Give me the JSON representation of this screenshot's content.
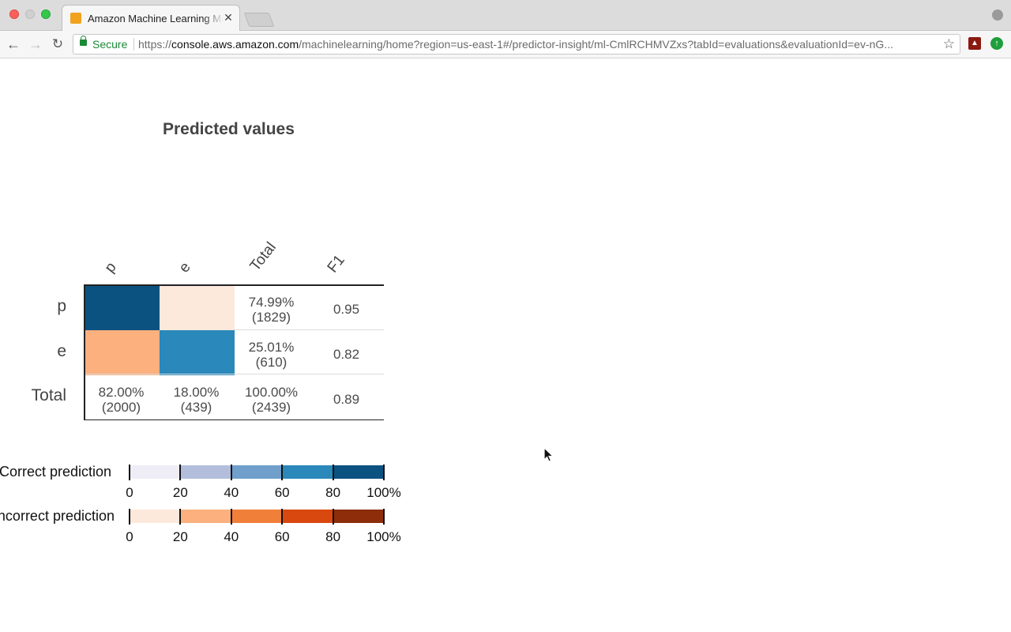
{
  "browser": {
    "tab_title": "Amazon Machine Learning Ma",
    "tab_close": "✕",
    "secure_label": "Secure",
    "url_scheme": "https://",
    "url_host": "console.aws.amazon.com",
    "url_path": "/machinelearning/home?region=us-east-1#/predictor-insight/ml-CmlRCHMVZxs?tabId=evaluations&evaluationId=ev-nG...",
    "back_glyph": "←",
    "forward_glyph": "→",
    "reload_glyph": "↻",
    "star_glyph": "☆"
  },
  "confusion_matrix": {
    "title": "Predicted values",
    "columns": [
      "p",
      "e",
      "Total",
      "F1"
    ],
    "rows": [
      {
        "label": "p",
        "total_pct": "74.99%",
        "total_count": "(1829)",
        "f1": "0.95"
      },
      {
        "label": "e",
        "total_pct": "25.01%",
        "total_count": "(610)",
        "f1": "0.82"
      },
      {
        "label": "Total",
        "p_pct": "82.00%",
        "p_count": "(2000)",
        "e_pct": "18.00%",
        "e_count": "(439)",
        "total_pct": "100.00%",
        "total_count": "(2439)",
        "f1": "0.89"
      }
    ],
    "cell_colors": {
      "pp": "#0b5281",
      "pe": "#fde8dc",
      "ep": "#fbb07e",
      "ee": "#2a88ba"
    }
  },
  "legend": {
    "correct_label": "Correct prediction",
    "incorrect_label": "Incorrect prediction",
    "tick_labels": [
      "0",
      "20",
      "40",
      "60",
      "80",
      "100%"
    ],
    "correct_colors": [
      "#efedf5",
      "#b3bedc",
      "#6f9fca",
      "#2a88ba",
      "#0b5281"
    ],
    "incorrect_colors": [
      "#fde8dc",
      "#fbb07e",
      "#f07f3a",
      "#d9480f",
      "#8d2d0a"
    ]
  }
}
